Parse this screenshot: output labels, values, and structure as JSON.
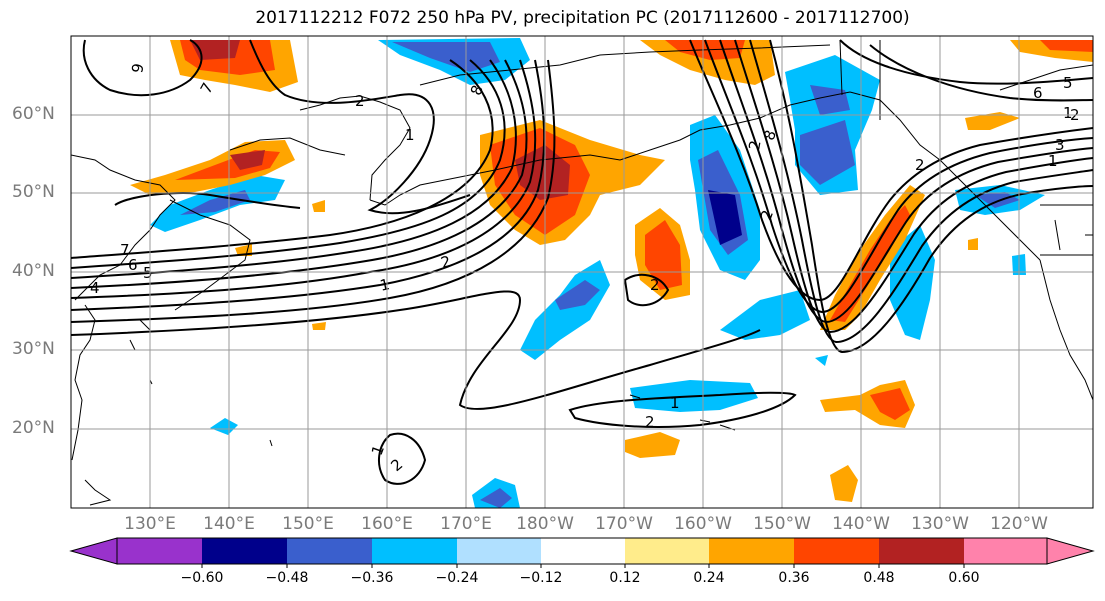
{
  "title": "2017112212 F072 250 hPa PV, precipitation PC (2017112600 - 2017112700)",
  "lat_labels": [
    "60°N",
    "50°N",
    "40°N",
    "30°N",
    "20°N"
  ],
  "lon_labels": [
    "130°E",
    "140°E",
    "150°E",
    "160°E",
    "170°E",
    "180°W",
    "170°W",
    "160°W",
    "150°W",
    "140°W",
    "130°W",
    "120°W"
  ],
  "colorbar": {
    "ticks": [
      "−0.60",
      "−0.48",
      "−0.36",
      "−0.24",
      "−0.12",
      "0.12",
      "0.24",
      "0.36",
      "0.48",
      "0.60"
    ],
    "colors": [
      "#9932cc",
      "#00008b",
      "#3a5fcd",
      "#00bfff",
      "#b0e0ff",
      "#ffffff",
      "#ffec8b",
      "#ffa500",
      "#ff4500",
      "#b22222",
      "#ff82ab"
    ]
  },
  "contour_labels": [
    "9",
    "7",
    "8",
    "2",
    "1",
    "2",
    "1",
    "7",
    "6",
    "5",
    "4",
    "1",
    "2",
    "2",
    "1",
    "2",
    "2",
    "8",
    "6",
    "5",
    "3",
    "1",
    "2",
    "2",
    "1",
    "2"
  ],
  "map_colors": {
    "land_outline": "#000000",
    "grid": "#9a9a9a",
    "contour": "#000000"
  }
}
